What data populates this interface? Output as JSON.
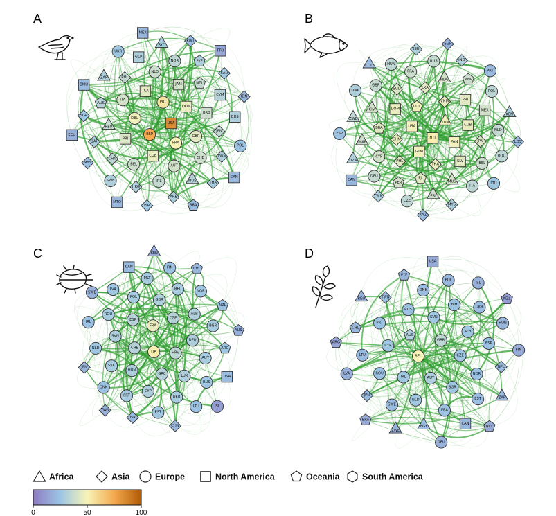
{
  "colors": {
    "edge": "#2e9e2e",
    "node_stroke": "#333333",
    "scale": [
      "#8e7cc3",
      "#9cc5e4",
      "#f8f4b8",
      "#f4a94e",
      "#b15a06"
    ]
  },
  "panels": [
    {
      "letter": "A",
      "icon": "bird-icon",
      "nodes": [
        {
          "id": "IDN",
          "shape": "diamond",
          "value": 20
        },
        {
          "id": "MYS",
          "shape": "diamond",
          "value": 22
        },
        {
          "id": "SYC",
          "shape": "triangle",
          "value": 28
        },
        {
          "id": "HKG",
          "shape": "diamond",
          "value": 30
        },
        {
          "id": "SGP",
          "shape": "diamond",
          "value": 26
        },
        {
          "id": "ECU",
          "shape": "square",
          "value": 18
        },
        {
          "id": "MTQ",
          "shape": "square",
          "value": 20
        },
        {
          "id": "GLP",
          "shape": "square",
          "value": 30
        },
        {
          "id": "TWN",
          "shape": "diamond",
          "value": 30
        },
        {
          "id": "PHL",
          "shape": "diamond",
          "value": 35
        },
        {
          "id": "JAM",
          "shape": "square",
          "value": 40
        },
        {
          "id": "CHN",
          "shape": "diamond",
          "value": 34
        },
        {
          "id": "SAU",
          "shape": "diamond",
          "value": 26
        },
        {
          "id": "KWT",
          "shape": "diamond",
          "value": 22
        },
        {
          "id": "TTO",
          "shape": "square",
          "value": 15
        },
        {
          "id": "JPN",
          "shape": "diamond",
          "value": 35
        },
        {
          "id": "MUS",
          "shape": "triangle",
          "value": 32
        },
        {
          "id": "REU",
          "shape": "triangle",
          "value": 36
        },
        {
          "id": "PRI",
          "shape": "square",
          "value": 42
        },
        {
          "id": "QAT",
          "shape": "diamond",
          "value": 30
        },
        {
          "id": "THA",
          "shape": "diamond",
          "value": 28
        },
        {
          "id": "BRA",
          "shape": "pentagon",
          "value": 22
        },
        {
          "id": "PYF",
          "shape": "pentagon",
          "value": 30
        },
        {
          "id": "DOM",
          "shape": "square",
          "value": 46
        },
        {
          "id": "CUB",
          "shape": "square",
          "value": 46
        },
        {
          "id": "ARE",
          "shape": "diamond",
          "value": 30
        },
        {
          "id": "AUS",
          "shape": "pentagon",
          "value": 32
        },
        {
          "id": "USA",
          "shape": "square",
          "value": 85
        },
        {
          "id": "ESP",
          "shape": "circle",
          "value": 75
        },
        {
          "id": "PRT",
          "shape": "circle",
          "value": 55
        },
        {
          "id": "MEX",
          "shape": "square",
          "value": 20
        },
        {
          "id": "BRB",
          "shape": "square",
          "value": 38
        },
        {
          "id": "ISR",
          "shape": "diamond",
          "value": 26
        },
        {
          "id": "FRA",
          "shape": "circle",
          "value": 50
        },
        {
          "id": "NZL",
          "shape": "pentagon",
          "value": 36
        },
        {
          "id": "TCA",
          "shape": "square",
          "value": 44
        },
        {
          "id": "BMU",
          "shape": "square",
          "value": 22
        },
        {
          "id": "ZAF",
          "shape": "triangle",
          "value": 30
        },
        {
          "id": "DEU",
          "shape": "circle",
          "value": 48
        },
        {
          "id": "AUT",
          "shape": "circle",
          "value": 40
        },
        {
          "id": "CYM",
          "shape": "square",
          "value": 32
        },
        {
          "id": "POL",
          "shape": "circle",
          "value": 24
        },
        {
          "id": "BEL",
          "shape": "circle",
          "value": 38
        },
        {
          "id": "GBR",
          "shape": "circle",
          "value": 44
        },
        {
          "id": "CAN",
          "shape": "square",
          "value": 20
        },
        {
          "id": "BHS",
          "shape": "square",
          "value": 30
        },
        {
          "id": "ITA",
          "shape": "circle",
          "value": 40
        },
        {
          "id": "IRL",
          "shape": "circle",
          "value": 36
        },
        {
          "id": "NLD",
          "shape": "circle",
          "value": 38
        },
        {
          "id": "CHE",
          "shape": "circle",
          "value": 38
        },
        {
          "id": "UKR",
          "shape": "circle",
          "value": 26
        },
        {
          "id": "NOR",
          "shape": "circle",
          "value": 34
        },
        {
          "id": "SWE",
          "shape": "circle",
          "value": 30
        }
      ]
    },
    {
      "letter": "B",
      "icon": "fish-icon",
      "nodes": [
        {
          "id": "CAN",
          "shape": "square",
          "value": 20
        },
        {
          "id": "ESP",
          "shape": "circle",
          "value": 24
        },
        {
          "id": "DZA",
          "shape": "triangle",
          "value": 30
        },
        {
          "id": "ITA",
          "shape": "circle",
          "value": 34
        },
        {
          "id": "SGP",
          "shape": "diamond",
          "value": 18
        },
        {
          "id": "PRT",
          "shape": "circle",
          "value": 22
        },
        {
          "id": "IND",
          "shape": "diamond",
          "value": 30
        },
        {
          "id": "CYP",
          "shape": "circle",
          "value": 40
        },
        {
          "id": "KAZ",
          "shape": "diamond",
          "value": 22
        },
        {
          "id": "ZWE",
          "shape": "triangle",
          "value": 34
        },
        {
          "id": "GBR",
          "shape": "circle",
          "value": 36
        },
        {
          "id": "MDG",
          "shape": "triangle",
          "value": 40
        },
        {
          "id": "MUS",
          "shape": "triangle",
          "value": 40
        },
        {
          "id": "SGD",
          "shape": "diamond",
          "value": 42
        },
        {
          "id": "FRA",
          "shape": "circle",
          "value": 38
        },
        {
          "id": "MYS",
          "shape": "diamond",
          "value": 30
        },
        {
          "id": "CHN",
          "shape": "diamond",
          "value": 46
        },
        {
          "id": "USA",
          "shape": "square",
          "value": 48
        },
        {
          "id": "PHL",
          "shape": "diamond",
          "value": 44
        },
        {
          "id": "TUN",
          "shape": "triangle",
          "value": 48
        },
        {
          "id": "BEL",
          "shape": "circle",
          "value": 38
        },
        {
          "id": "CIV",
          "shape": "triangle",
          "value": 40
        },
        {
          "id": "JPN",
          "shape": "diamond",
          "value": 42
        },
        {
          "id": "NLD",
          "shape": "circle",
          "value": 36
        },
        {
          "id": "DNK",
          "shape": "circle",
          "value": 30
        },
        {
          "id": "COD",
          "shape": "triangle",
          "value": 22
        },
        {
          "id": "LKA",
          "shape": "diamond",
          "value": 44
        },
        {
          "id": "VNM",
          "shape": "diamond",
          "value": 46
        },
        {
          "id": "GTM",
          "shape": "square",
          "value": 48
        },
        {
          "id": "HTI",
          "shape": "square",
          "value": 52
        },
        {
          "id": "IMAR",
          "shape": "triangle",
          "value": 38
        },
        {
          "id": "DEU",
          "shape": "circle",
          "value": 36
        },
        {
          "id": "SLV",
          "shape": "square",
          "value": 44
        },
        {
          "id": "THA",
          "shape": "diamond",
          "value": 46
        },
        {
          "id": "KEN",
          "shape": "triangle",
          "value": 30
        },
        {
          "id": "BRA",
          "shape": "pentagon",
          "value": 44
        },
        {
          "id": "LDS",
          "shape": "diamond",
          "value": 22
        },
        {
          "id": "PRI",
          "shape": "square",
          "value": 44
        },
        {
          "id": "COL",
          "shape": "pentagon",
          "value": 48
        },
        {
          "id": "RUS",
          "shape": "circle",
          "value": 36
        },
        {
          "id": "POL",
          "shape": "circle",
          "value": 34
        },
        {
          "id": "MNP",
          "shape": "pentagon",
          "value": 38
        },
        {
          "id": "DOM",
          "shape": "square",
          "value": 46
        },
        {
          "id": "FJI",
          "shape": "pentagon",
          "value": 44
        },
        {
          "id": "CZE",
          "shape": "circle",
          "value": 34
        },
        {
          "id": "PAN",
          "shape": "square",
          "value": 48
        },
        {
          "id": "HUN",
          "shape": "circle",
          "value": 34
        },
        {
          "id": "MEX",
          "shape": "square",
          "value": 40
        },
        {
          "id": "CUB",
          "shape": "square",
          "value": 46
        },
        {
          "id": "ERI",
          "shape": "triangle",
          "value": 38
        },
        {
          "id": "ROU",
          "shape": "circle",
          "value": 34
        },
        {
          "id": "LTU",
          "shape": "circle",
          "value": 26
        },
        {
          "id": "TWN",
          "shape": "diamond",
          "value": 30
        },
        {
          "id": "PER",
          "shape": "pentagon",
          "value": 40
        },
        {
          "id": "ISR",
          "shape": "diamond",
          "value": 30
        }
      ]
    },
    {
      "letter": "C",
      "icon": "beetle-icon",
      "nodes": [
        {
          "id": "SWE",
          "shape": "circle",
          "value": 18
        },
        {
          "id": "DNK",
          "shape": "circle",
          "value": 24
        },
        {
          "id": "FIN",
          "shape": "circle",
          "value": 24
        },
        {
          "id": "RUS",
          "shape": "circle",
          "value": 26
        },
        {
          "id": "NLD",
          "shape": "circle",
          "value": 26
        },
        {
          "id": "POL",
          "shape": "circle",
          "value": 28
        },
        {
          "id": "AUT",
          "shape": "circle",
          "value": 28
        },
        {
          "id": "LTU",
          "shape": "circle",
          "value": 24
        },
        {
          "id": "SVK",
          "shape": "circle",
          "value": 28
        },
        {
          "id": "DEU",
          "shape": "circle",
          "value": 30
        },
        {
          "id": "BEL",
          "shape": "circle",
          "value": 28
        },
        {
          "id": "IRL",
          "shape": "circle",
          "value": 24
        },
        {
          "id": "NOR",
          "shape": "circle",
          "value": 26
        },
        {
          "id": "UKR",
          "shape": "circle",
          "value": 28
        },
        {
          "id": "HUN",
          "shape": "circle",
          "value": 30
        },
        {
          "id": "GBR",
          "shape": "circle",
          "value": 30
        },
        {
          "id": "EST",
          "shape": "circle",
          "value": 26
        },
        {
          "id": "LUX",
          "shape": "circle",
          "value": 30
        },
        {
          "id": "CHE",
          "shape": "circle",
          "value": 32
        },
        {
          "id": "ROU",
          "shape": "circle",
          "value": 28
        },
        {
          "id": "CZE",
          "shape": "circle",
          "value": 32
        },
        {
          "id": "FRA",
          "shape": "circle",
          "value": 46
        },
        {
          "id": "LVA",
          "shape": "circle",
          "value": 26
        },
        {
          "id": "HRV",
          "shape": "circle",
          "value": 34
        },
        {
          "id": "GRC",
          "shape": "circle",
          "value": 32
        },
        {
          "id": "BGR",
          "shape": "circle",
          "value": 28
        },
        {
          "id": "ITA",
          "shape": "circle",
          "value": 52
        },
        {
          "id": "SVN",
          "shape": "circle",
          "value": 30
        },
        {
          "id": "ESP",
          "shape": "circle",
          "value": 32
        },
        {
          "id": "ISR",
          "shape": "diamond",
          "value": 22
        },
        {
          "id": "CAN",
          "shape": "square",
          "value": 22
        },
        {
          "id": "NZL",
          "shape": "pentagon",
          "value": 24
        },
        {
          "id": "ALB",
          "shape": "circle",
          "value": 30
        },
        {
          "id": "CYP",
          "shape": "circle",
          "value": 30
        },
        {
          "id": "PRT",
          "shape": "circle",
          "value": 28
        },
        {
          "id": "ISL",
          "shape": "circle",
          "value": 12
        },
        {
          "id": "USA",
          "shape": "square",
          "value": 22
        },
        {
          "id": "ARG",
          "shape": "pentagon",
          "value": 26
        },
        {
          "id": "MLT",
          "shape": "circle",
          "value": 28
        },
        {
          "id": "AUS",
          "shape": "pentagon",
          "value": 18
        },
        {
          "id": "JPN",
          "shape": "diamond",
          "value": 20
        },
        {
          "id": "CHL",
          "shape": "pentagon",
          "value": 20
        },
        {
          "id": "KEN",
          "shape": "triangle",
          "value": 16
        },
        {
          "id": "CHN",
          "shape": "diamond",
          "value": 20
        },
        {
          "id": "TWN",
          "shape": "diamond",
          "value": 18
        }
      ]
    },
    {
      "letter": "D",
      "icon": "plant-icon",
      "nodes": [
        {
          "id": "FIN",
          "shape": "circle",
          "value": 16
        },
        {
          "id": "POL",
          "shape": "circle",
          "value": 20
        },
        {
          "id": "LVA",
          "shape": "circle",
          "value": 18
        },
        {
          "id": "ISL",
          "shape": "circle",
          "value": 18
        },
        {
          "id": "SWE",
          "shape": "circle",
          "value": 22
        },
        {
          "id": "DNK",
          "shape": "circle",
          "value": 22
        },
        {
          "id": "EST",
          "shape": "circle",
          "value": 22
        },
        {
          "id": "LTU",
          "shape": "circle",
          "value": 22
        },
        {
          "id": "RUS",
          "shape": "circle",
          "value": 24
        },
        {
          "id": "CAN",
          "shape": "square",
          "value": 20
        },
        {
          "id": "NOR",
          "shape": "circle",
          "value": 24
        },
        {
          "id": "UKR",
          "shape": "circle",
          "value": 22
        },
        {
          "id": "CZE",
          "shape": "circle",
          "value": 26
        },
        {
          "id": "IRL",
          "shape": "circle",
          "value": 26
        },
        {
          "id": "SVN",
          "shape": "circle",
          "value": 26
        },
        {
          "id": "GBR",
          "shape": "circle",
          "value": 34
        },
        {
          "id": "BGR",
          "shape": "circle",
          "value": 26
        },
        {
          "id": "AUT",
          "shape": "circle",
          "value": 30
        },
        {
          "id": "ROU",
          "shape": "circle",
          "value": 24
        },
        {
          "id": "BIH",
          "shape": "circle",
          "value": 24
        },
        {
          "id": "BEL",
          "shape": "circle",
          "value": 50
        },
        {
          "id": "DEU",
          "shape": "circle",
          "value": 18
        },
        {
          "id": "REU",
          "shape": "triangle",
          "value": 18
        },
        {
          "id": "CHL",
          "shape": "pentagon",
          "value": 20
        },
        {
          "id": "CYP",
          "shape": "circle",
          "value": 26
        },
        {
          "id": "ALB",
          "shape": "circle",
          "value": 26
        },
        {
          "id": "NLD",
          "shape": "circle",
          "value": 26
        },
        {
          "id": "EGY",
          "shape": "triangle",
          "value": 22
        },
        {
          "id": "AUS",
          "shape": "pentagon",
          "value": 30
        },
        {
          "id": "FRA",
          "shape": "circle",
          "value": 24
        },
        {
          "id": "HUN",
          "shape": "circle",
          "value": 20
        },
        {
          "id": "PRT",
          "shape": "circle",
          "value": 24
        },
        {
          "id": "ZWE",
          "shape": "triangle",
          "value": 20
        },
        {
          "id": "TWN",
          "shape": "diamond",
          "value": 22
        },
        {
          "id": "ESP",
          "shape": "circle",
          "value": 24
        },
        {
          "id": "NPL",
          "shape": "diamond",
          "value": 22
        },
        {
          "id": "JPN",
          "shape": "diamond",
          "value": 22
        },
        {
          "id": "BRA",
          "shape": "pentagon",
          "value": 16
        },
        {
          "id": "PYF",
          "shape": "pentagon",
          "value": 20
        },
        {
          "id": "ZAF",
          "shape": "triangle",
          "value": 20
        },
        {
          "id": "USA",
          "shape": "square",
          "value": 16
        },
        {
          "id": "NCL",
          "shape": "pentagon",
          "value": 16
        },
        {
          "id": "ARG",
          "shape": "pentagon",
          "value": 14
        },
        {
          "id": "NZL",
          "shape": "pentagon",
          "value": 12
        }
      ]
    }
  ],
  "legend": {
    "shapes": [
      {
        "shape": "triangle",
        "label": "Africa"
      },
      {
        "shape": "diamond",
        "label": "Asia"
      },
      {
        "shape": "circle",
        "label": "Europe"
      },
      {
        "shape": "square",
        "label": "North America"
      },
      {
        "shape": "pentagon",
        "label": "Oceania"
      },
      {
        "shape": "hexagon",
        "label": "South America"
      }
    ],
    "colorbar": {
      "min": 0,
      "max": 100,
      "ticks": [
        "0",
        "50",
        "100"
      ]
    }
  }
}
